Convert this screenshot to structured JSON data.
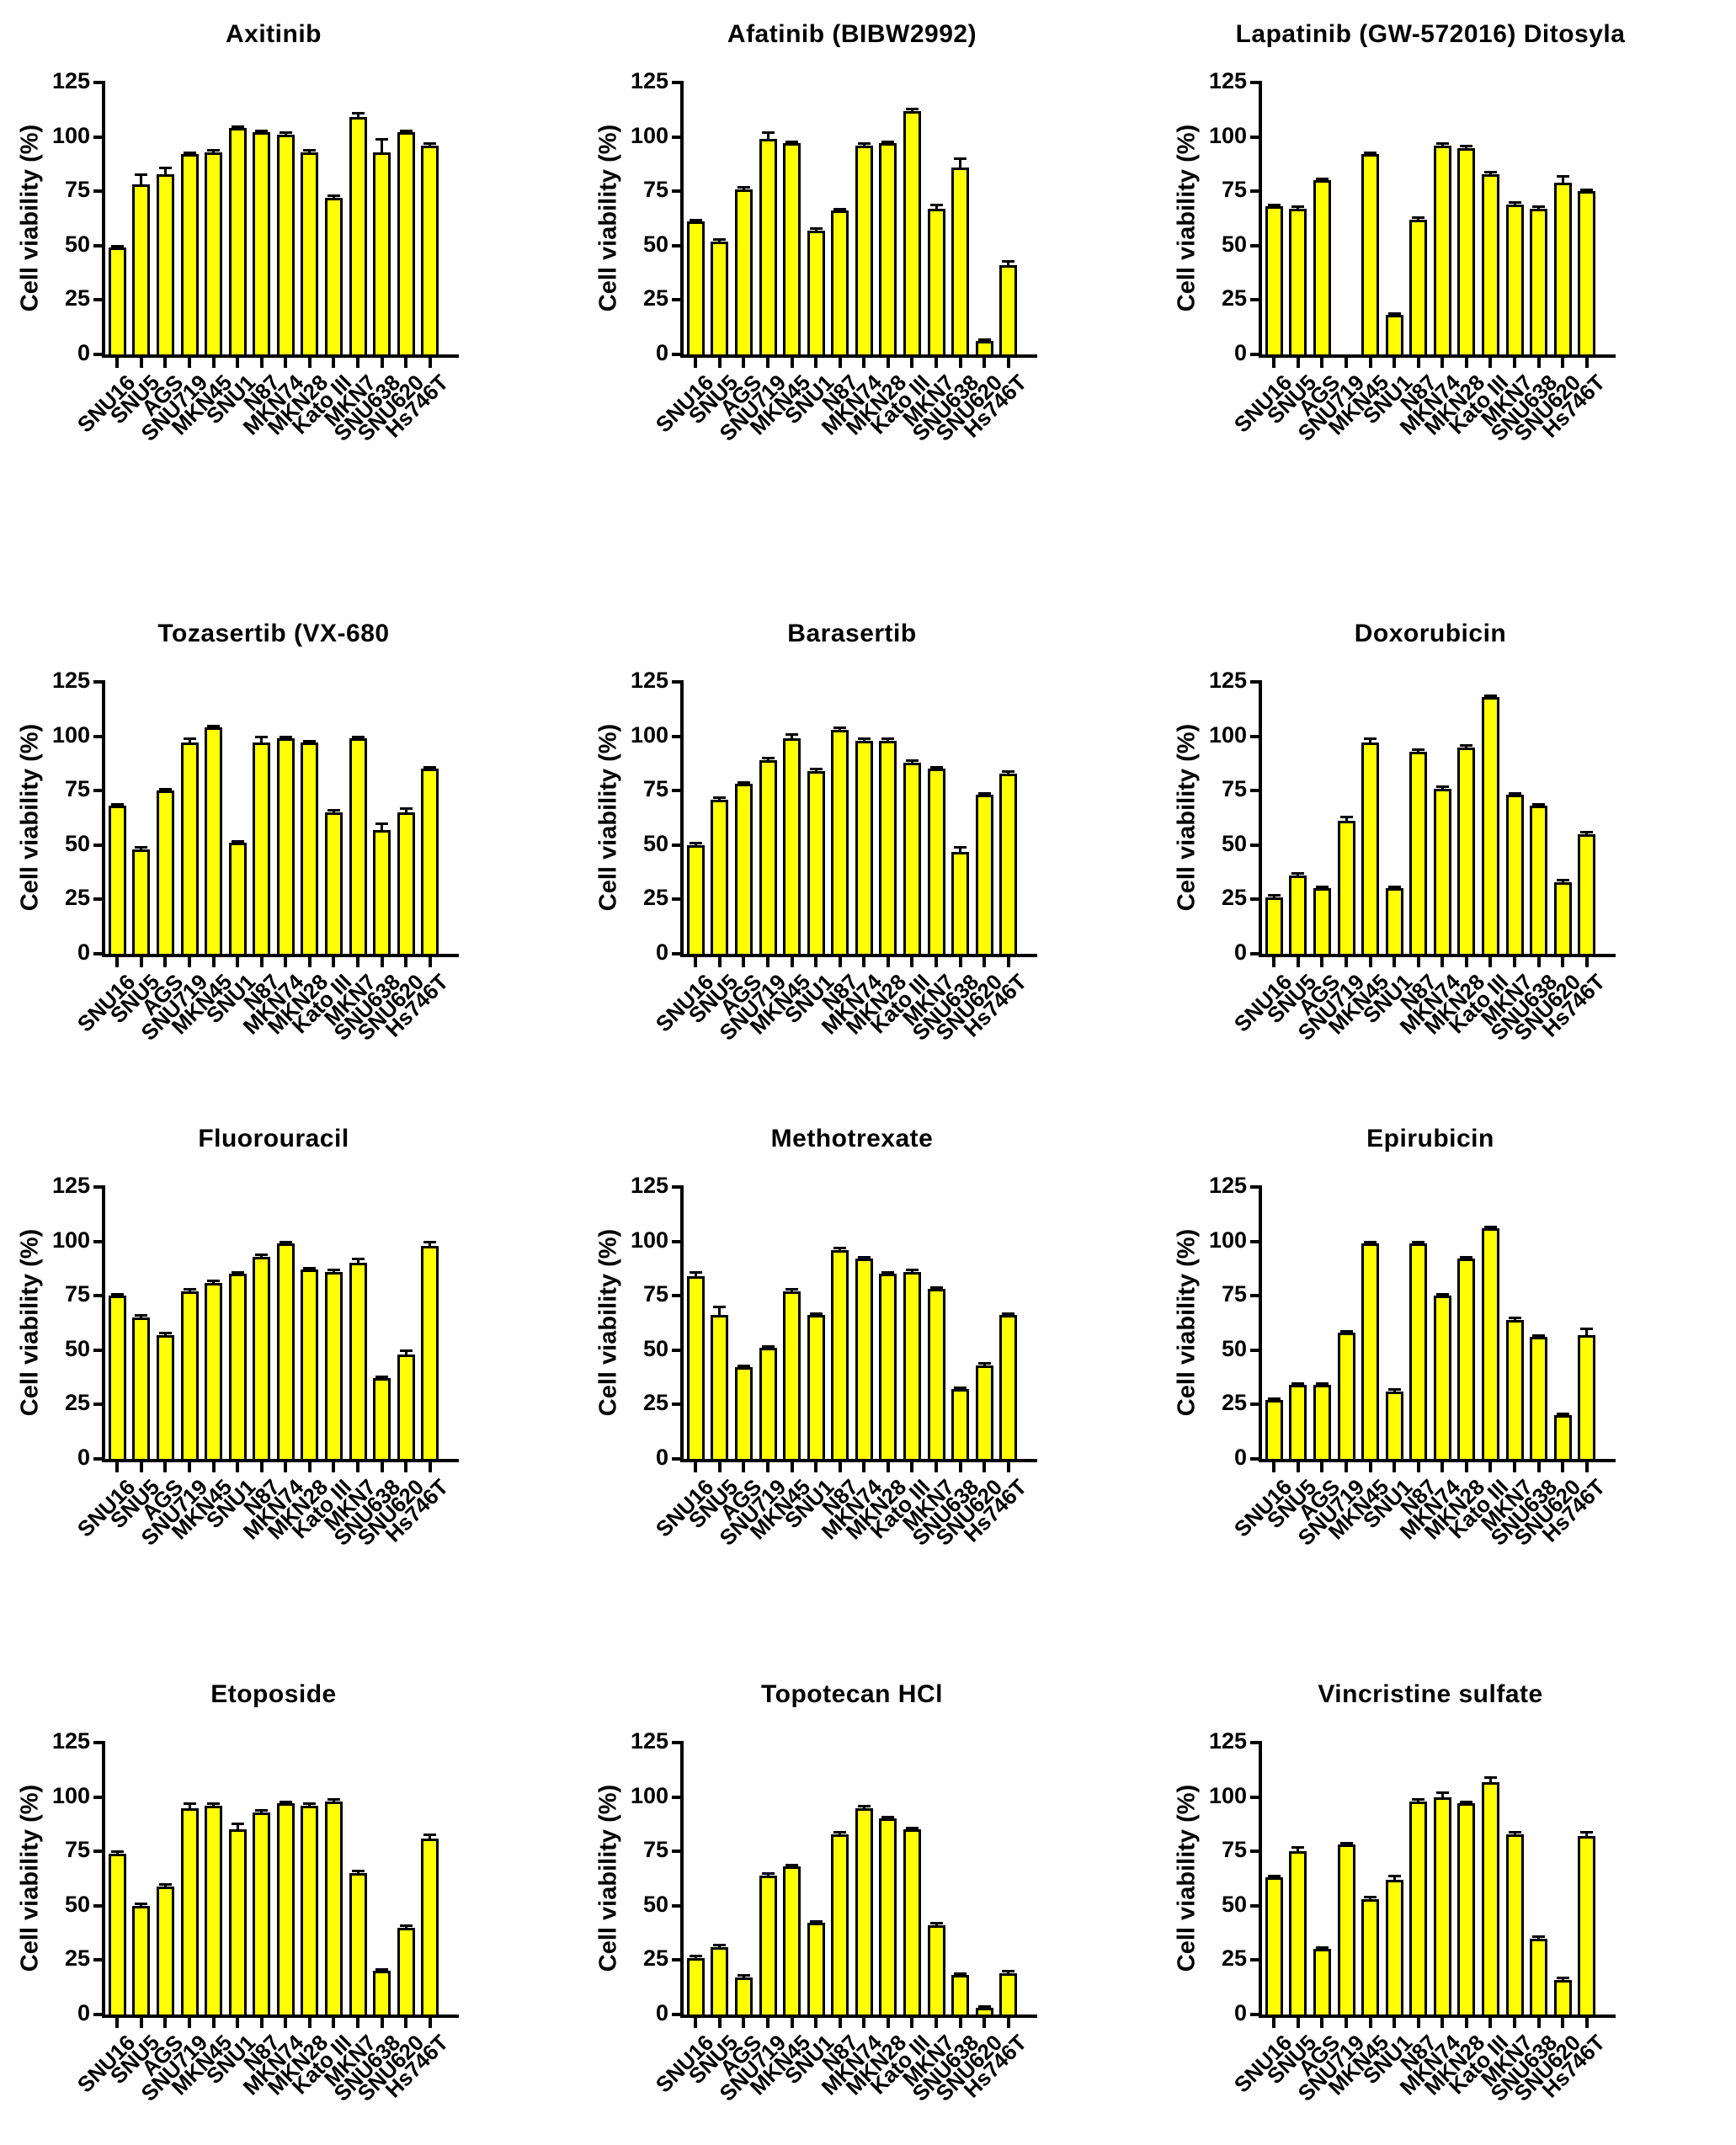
{
  "figure": {
    "categories": [
      "SNU16",
      "SNU5",
      "AGS",
      "SNU719",
      "MKN45",
      "SNU1",
      "N87",
      "MKN74",
      "MKN28",
      "Kato III",
      "MKN7",
      "SNU638",
      "SNU620",
      "Hs746T"
    ],
    "y_ticks": [
      0,
      25,
      50,
      75,
      100,
      125
    ],
    "ylim": [
      0,
      125
    ],
    "bar_color": "#FFFF00",
    "axis_color": "#000000",
    "layout_hints": {
      "grid": "4 rows x 3 cols",
      "legend": "none",
      "gridlines": false,
      "x_label_rotation": 45
    }
  },
  "chart_data": [
    {
      "type": "bar",
      "title": "Axitinib",
      "ylabel": "Cell viability (%)",
      "ylim": [
        0,
        125
      ],
      "categories": [
        "SNU16",
        "SNU5",
        "AGS",
        "SNU719",
        "MKN45",
        "SNU1",
        "N87",
        "MKN74",
        "MKN28",
        "Kato III",
        "MKN7",
        "SNU638",
        "SNU620",
        "Hs746T"
      ],
      "values": [
        49,
        78,
        83,
        92,
        93,
        104,
        102,
        101,
        93,
        72,
        109,
        93,
        102,
        96
      ],
      "errors": [
        1,
        5,
        3,
        1,
        1,
        1,
        1,
        1,
        1,
        1,
        2,
        6,
        1,
        1
      ]
    },
    {
      "type": "bar",
      "title": "Afatinib (BIBW2992)",
      "ylabel": "Cell viability (%)",
      "ylim": [
        0,
        125
      ],
      "categories": [
        "SNU16",
        "SNU5",
        "AGS",
        "SNU719",
        "MKN45",
        "SNU1",
        "N87",
        "MKN74",
        "MKN28",
        "Kato III",
        "MKN7",
        "SNU638",
        "SNU620",
        "Hs746T"
      ],
      "values": [
        61,
        52,
        76,
        99,
        97,
        57,
        66,
        96,
        97,
        112,
        67,
        86,
        6,
        41
      ],
      "errors": [
        1,
        1,
        1,
        3,
        1,
        1,
        1,
        1,
        1,
        1,
        2,
        4,
        1,
        2
      ]
    },
    {
      "type": "bar",
      "title": "Lapatinib (GW-572016) Ditosyla",
      "ylabel": "Cell viability (%)",
      "ylim": [
        0,
        125
      ],
      "categories": [
        "SNU16",
        "SNU5",
        "AGS",
        "SNU719",
        "MKN45",
        "SNU1",
        "N87",
        "MKN74",
        "MKN28",
        "Kato III",
        "MKN7",
        "SNU638",
        "SNU620",
        "Hs746T"
      ],
      "values": [
        68,
        67,
        80,
        0,
        92,
        18,
        62,
        96,
        95,
        83,
        69,
        67,
        79,
        75
      ],
      "errors": [
        1,
        1,
        1,
        0,
        1,
        1,
        1,
        1,
        1,
        1,
        1,
        1,
        3,
        1
      ]
    },
    {
      "type": "bar",
      "title": "Tozasertib (VX-680",
      "ylabel": "Cell viability (%)",
      "ylim": [
        0,
        125
      ],
      "categories": [
        "SNU16",
        "SNU5",
        "AGS",
        "SNU719",
        "MKN45",
        "SNU1",
        "N87",
        "MKN74",
        "MKN28",
        "Kato III",
        "MKN7",
        "SNU638",
        "SNU620",
        "Hs746T"
      ],
      "values": [
        68,
        48,
        75,
        97,
        104,
        51,
        97,
        99,
        97,
        65,
        99,
        57,
        65,
        85
      ],
      "errors": [
        1,
        1,
        1,
        2,
        1,
        1,
        3,
        1,
        1,
        1,
        1,
        3,
        2,
        1
      ]
    },
    {
      "type": "bar",
      "title": "Barasertib",
      "ylabel": "Cell viability (%)",
      "ylim": [
        0,
        125
      ],
      "categories": [
        "SNU16",
        "SNU5",
        "AGS",
        "SNU719",
        "MKN45",
        "SNU1",
        "N87",
        "MKN74",
        "MKN28",
        "Kato III",
        "MKN7",
        "SNU638",
        "SNU620",
        "Hs746T"
      ],
      "values": [
        50,
        71,
        78,
        89,
        99,
        84,
        103,
        98,
        98,
        88,
        85,
        47,
        73,
        83
      ],
      "errors": [
        1,
        1,
        1,
        1,
        2,
        1,
        1,
        1,
        1,
        1,
        1,
        2,
        1,
        1
      ]
    },
    {
      "type": "bar",
      "title": "Doxorubicin",
      "ylabel": "Cell viability (%)",
      "ylim": [
        0,
        125
      ],
      "categories": [
        "SNU16",
        "SNU5",
        "AGS",
        "SNU719",
        "MKN45",
        "SNU1",
        "N87",
        "MKN74",
        "MKN28",
        "Kato III",
        "MKN7",
        "SNU638",
        "SNU620",
        "Hs746T"
      ],
      "values": [
        26,
        36,
        30,
        61,
        97,
        30,
        93,
        76,
        95,
        118,
        73,
        68,
        33,
        55
      ],
      "errors": [
        1,
        1,
        1,
        2,
        2,
        1,
        1,
        1,
        1,
        1,
        1,
        1,
        1,
        1
      ]
    },
    {
      "type": "bar",
      "title": "Fluorouracil",
      "ylabel": "Cell viability (%)",
      "ylim": [
        0,
        125
      ],
      "categories": [
        "SNU16",
        "SNU5",
        "AGS",
        "SNU719",
        "MKN45",
        "SNU1",
        "N87",
        "MKN74",
        "MKN28",
        "Kato III",
        "MKN7",
        "SNU638",
        "SNU620",
        "Hs746T"
      ],
      "values": [
        75,
        65,
        57,
        77,
        81,
        85,
        93,
        99,
        87,
        86,
        90,
        37,
        48,
        98
      ],
      "errors": [
        1,
        1,
        1,
        1,
        1,
        1,
        1,
        1,
        1,
        1,
        2,
        1,
        2,
        2
      ]
    },
    {
      "type": "bar",
      "title": "Methotrexate",
      "ylabel": "Cell viability (%)",
      "ylim": [
        0,
        125
      ],
      "categories": [
        "SNU16",
        "SNU5",
        "AGS",
        "SNU719",
        "MKN45",
        "SNU1",
        "N87",
        "MKN74",
        "MKN28",
        "Kato III",
        "MKN7",
        "SNU638",
        "SNU620",
        "Hs746T"
      ],
      "values": [
        84,
        66,
        42,
        51,
        77,
        66,
        96,
        92,
        85,
        86,
        78,
        32,
        43,
        66
      ],
      "errors": [
        2,
        4,
        1,
        1,
        1,
        1,
        1,
        1,
        1,
        1,
        1,
        1,
        1,
        1
      ]
    },
    {
      "type": "bar",
      "title": "Epirubicin",
      "ylabel": "Cell viability (%)",
      "ylim": [
        0,
        125
      ],
      "categories": [
        "SNU16",
        "SNU5",
        "AGS",
        "SNU719",
        "MKN45",
        "SNU1",
        "N87",
        "MKN74",
        "MKN28",
        "Kato III",
        "MKN7",
        "SNU638",
        "SNU620",
        "Hs746T"
      ],
      "values": [
        27,
        34,
        34,
        58,
        99,
        31,
        99,
        75,
        92,
        106,
        64,
        56,
        20,
        57
      ],
      "errors": [
        1,
        1,
        1,
        1,
        1,
        1,
        1,
        1,
        1,
        1,
        1,
        1,
        1,
        3
      ]
    },
    {
      "type": "bar",
      "title": "Etoposide",
      "ylabel": "Cell viability (%)",
      "ylim": [
        0,
        125
      ],
      "categories": [
        "SNU16",
        "SNU5",
        "AGS",
        "SNU719",
        "MKN45",
        "SNU1",
        "N87",
        "MKN74",
        "MKN28",
        "Kato III",
        "MKN7",
        "SNU638",
        "SNU620",
        "Hs746T"
      ],
      "values": [
        74,
        50,
        59,
        95,
        96,
        85,
        93,
        97,
        96,
        98,
        65,
        20,
        40,
        81
      ],
      "errors": [
        1,
        1,
        1,
        2,
        1,
        3,
        1,
        1,
        1,
        1,
        1,
        1,
        1,
        2
      ]
    },
    {
      "type": "bar",
      "title": "Topotecan HCl",
      "ylabel": "Cell viability (%)",
      "ylim": [
        0,
        125
      ],
      "categories": [
        "SNU16",
        "SNU5",
        "AGS",
        "SNU719",
        "MKN45",
        "SNU1",
        "N87",
        "MKN74",
        "MKN28",
        "Kato III",
        "MKN7",
        "SNU638",
        "SNU620",
        "Hs746T"
      ],
      "values": [
        26,
        31,
        17,
        64,
        68,
        42,
        83,
        95,
        90,
        85,
        41,
        18,
        3,
        19
      ],
      "errors": [
        1,
        1,
        1,
        1,
        1,
        1,
        1,
        1,
        1,
        1,
        1,
        1,
        1,
        1
      ]
    },
    {
      "type": "bar",
      "title": "Vincristine sulfate",
      "ylabel": "Cell viability (%)",
      "ylim": [
        0,
        125
      ],
      "categories": [
        "SNU16",
        "SNU5",
        "AGS",
        "SNU719",
        "MKN45",
        "SNU1",
        "N87",
        "MKN74",
        "MKN28",
        "Kato III",
        "MKN7",
        "SNU638",
        "SNU620",
        "Hs746T"
      ],
      "values": [
        63,
        75,
        30,
        78,
        53,
        62,
        98,
        100,
        97,
        107,
        83,
        35,
        16,
        82
      ],
      "errors": [
        1,
        2,
        1,
        1,
        1,
        2,
        1,
        2,
        1,
        2,
        1,
        1,
        1,
        2
      ]
    }
  ]
}
